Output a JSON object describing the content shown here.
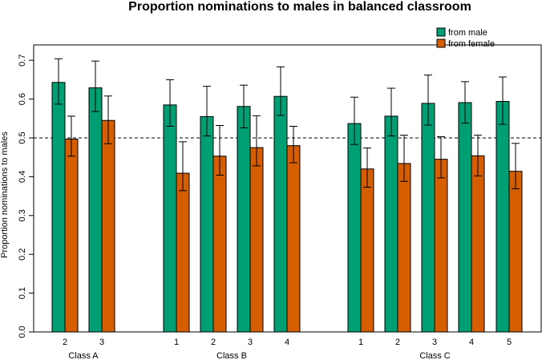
{
  "chart_data": {
    "type": "bar",
    "title": "Proportion nominations to males in balanced classroom",
    "xlabel": "",
    "ylabel": "Proportion nominations to males",
    "ylim": [
      0,
      0.7
    ],
    "yticks": [
      "0.0",
      "0.1",
      "0.2",
      "0.3",
      "0.4",
      "0.5",
      "0.6",
      "0.7"
    ],
    "reference_line": 0.5,
    "legend_position": "top-right",
    "colors": {
      "from male": "#009E73",
      "from female": "#D55E00"
    },
    "groups": [
      {
        "label": "Class A",
        "categories": [
          "2",
          "3"
        ]
      },
      {
        "label": "Class B",
        "categories": [
          "1",
          "2",
          "3",
          "4"
        ]
      },
      {
        "label": "Class C",
        "categories": [
          "1",
          "2",
          "3",
          "4",
          "5"
        ]
      }
    ],
    "series": [
      {
        "name": "from male",
        "values": [
          0.643,
          0.629,
          0.585,
          0.555,
          0.581,
          0.607,
          0.537,
          0.556,
          0.589,
          0.591,
          0.594
        ],
        "lower": [
          0.587,
          0.568,
          0.53,
          0.505,
          0.526,
          0.558,
          0.483,
          0.505,
          0.533,
          0.538,
          0.535
        ],
        "upper": [
          0.704,
          0.698,
          0.65,
          0.633,
          0.636,
          0.683,
          0.605,
          0.628,
          0.662,
          0.645,
          0.657
        ]
      },
      {
        "name": "from female",
        "values": [
          0.497,
          0.545,
          0.409,
          0.453,
          0.475,
          0.48,
          0.42,
          0.434,
          0.445,
          0.454,
          0.414
        ],
        "lower": [
          0.453,
          0.485,
          0.364,
          0.404,
          0.428,
          0.436,
          0.373,
          0.388,
          0.397,
          0.402,
          0.369
        ],
        "upper": [
          0.556,
          0.608,
          0.49,
          0.532,
          0.557,
          0.53,
          0.474,
          0.507,
          0.503,
          0.507,
          0.486
        ]
      }
    ]
  }
}
